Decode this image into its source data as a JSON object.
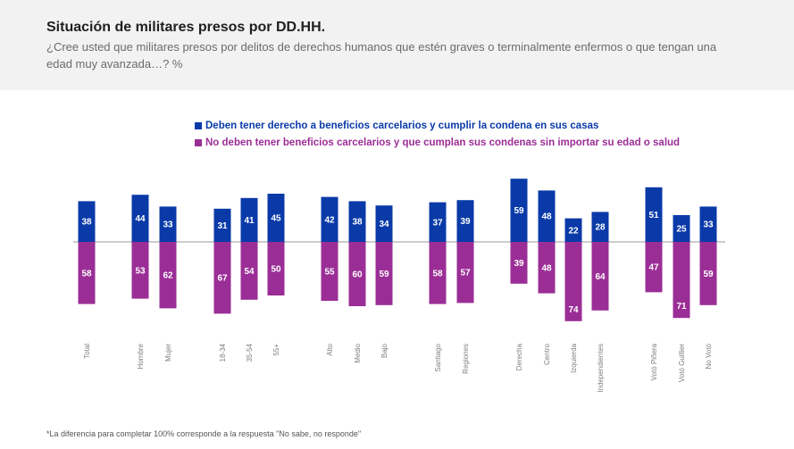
{
  "title": "Situación de militares presos por DD.HH.",
  "subtitle": "¿Cree usted que militares presos por delitos de derechos humanos que estén graves o terminalmente enfermos o que tengan una edad muy avanzada…? %",
  "footnote": "*La diferencia para completar 100% corresponde a la respuesta \"No sabe, no responde\"",
  "colors": {
    "series_a": "#0a3aa8",
    "series_b": "#9b2e96"
  },
  "chart_data": {
    "type": "bar",
    "orientation": "diverging",
    "categories": [
      "Total",
      "Hombre",
      "Mujer",
      "18-34",
      "35-54",
      "55+",
      "Alto",
      "Medio",
      "Bajo",
      "Santiago",
      "Regiones",
      "Derecha",
      "Centro",
      "Izquierda",
      "Independientes",
      "Votó Piñera",
      "Votó Guillier",
      "No Votó"
    ],
    "groups": [
      [
        "Total"
      ],
      [
        "Hombre",
        "Mujer"
      ],
      [
        "18-34",
        "35-54",
        "55+"
      ],
      [
        "Alto",
        "Medio",
        "Bajo"
      ],
      [
        "Santiago",
        "Regiones"
      ],
      [
        "Derecha",
        "Centro",
        "Izquierda",
        "Independientes"
      ],
      [
        "Votó Piñera",
        "Votó Guillier",
        "No Votó"
      ]
    ],
    "series": [
      {
        "name": "Deben tener derecho a beneficios carcelarios y cumplir la condena en sus casas",
        "direction": "up",
        "values": [
          38,
          44,
          33,
          31,
          41,
          45,
          42,
          38,
          34,
          37,
          39,
          59,
          48,
          22,
          28,
          51,
          25,
          33
        ]
      },
      {
        "name": "No deben tener beneficios carcelarios y  que cumplan sus condenas sin importar su edad o salud",
        "direction": "down",
        "values": [
          58,
          53,
          62,
          67,
          54,
          50,
          55,
          60,
          59,
          58,
          57,
          39,
          48,
          74,
          64,
          47,
          71,
          59
        ]
      }
    ],
    "legend_position": "top",
    "units": "%"
  }
}
